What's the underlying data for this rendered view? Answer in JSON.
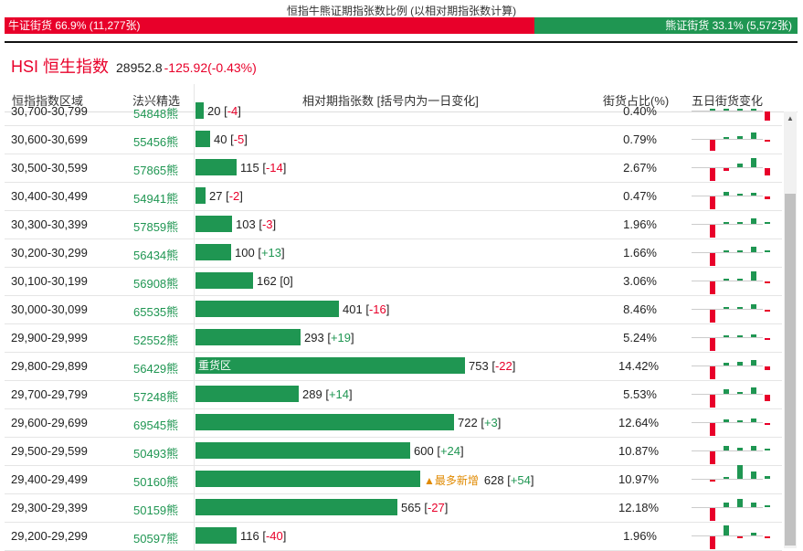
{
  "title": "恒指牛熊证期指张数比例 (以相对期指张数计算)",
  "ratio": {
    "bull_label": "牛证街货 66.9% (11,277张)",
    "bear_label": "熊证街货 33.1% (5,572张)",
    "bull_pct": 66.9,
    "bear_pct": 33.1,
    "colors": {
      "bull": "#e8002a",
      "bear": "#1f9652"
    }
  },
  "index": {
    "name": "HSI 恒生指数",
    "price": "28952.8",
    "change": "-125.92(-0.43%)"
  },
  "columns": {
    "range": "恒指指数区域",
    "bear": "法兴精选",
    "count": "相对期指张数 [括号内为一日变化]",
    "pct": "街货占比(%)",
    "five_day": "五日街货变化"
  },
  "rows": [
    {
      "range": "30,700-30,799",
      "bear": "54848熊",
      "count": 20,
      "change": "-4",
      "pct": "0.40%",
      "bar_label": "",
      "note": ""
    },
    {
      "range": "30,600-30,699",
      "bear": "55456熊",
      "count": 40,
      "change": "-5",
      "pct": "0.79%",
      "bar_label": "",
      "note": ""
    },
    {
      "range": "30,500-30,599",
      "bear": "57865熊",
      "count": 115,
      "change": "-14",
      "pct": "2.67%",
      "bar_label": "",
      "note": ""
    },
    {
      "range": "30,400-30,499",
      "bear": "54941熊",
      "count": 27,
      "change": "-2",
      "pct": "0.47%",
      "bar_label": "",
      "note": ""
    },
    {
      "range": "30,300-30,399",
      "bear": "57859熊",
      "count": 103,
      "change": "-3",
      "pct": "1.96%",
      "bar_label": "",
      "note": ""
    },
    {
      "range": "30,200-30,299",
      "bear": "56434熊",
      "count": 100,
      "change": "+13",
      "pct": "1.66%",
      "bar_label": "",
      "note": ""
    },
    {
      "range": "30,100-30,199",
      "bear": "56908熊",
      "count": 162,
      "change": "0",
      "pct": "3.06%",
      "bar_label": "",
      "note": ""
    },
    {
      "range": "30,000-30,099",
      "bear": "65535熊",
      "count": 401,
      "change": "-16",
      "pct": "8.46%",
      "bar_label": "",
      "note": ""
    },
    {
      "range": "29,900-29,999",
      "bear": "52552熊",
      "count": 293,
      "change": "+19",
      "pct": "5.24%",
      "bar_label": "",
      "note": ""
    },
    {
      "range": "29,800-29,899",
      "bear": "56429熊",
      "count": 753,
      "change": "-22",
      "pct": "14.42%",
      "bar_label": "重货区",
      "note": ""
    },
    {
      "range": "29,700-29,799",
      "bear": "57248熊",
      "count": 289,
      "change": "+14",
      "pct": "5.53%",
      "bar_label": "",
      "note": ""
    },
    {
      "range": "29,600-29,699",
      "bear": "69545熊",
      "count": 722,
      "change": "+3",
      "pct": "12.64%",
      "bar_label": "",
      "note": ""
    },
    {
      "range": "29,500-29,599",
      "bear": "50493熊",
      "count": 600,
      "change": "+24",
      "pct": "10.87%",
      "bar_label": "",
      "note": ""
    },
    {
      "range": "29,400-29,499",
      "bear": "50160熊",
      "count": 628,
      "change": "+54",
      "pct": "10.97%",
      "bar_label": "",
      "note": "▲最多新增"
    },
    {
      "range": "29,300-29,399",
      "bear": "50159熊",
      "count": 565,
      "change": "-27",
      "pct": "12.18%",
      "bar_label": "",
      "note": ""
    },
    {
      "range": "29,200-29,299",
      "bear": "50597熊",
      "count": 116,
      "change": "-40",
      "pct": "1.96%",
      "bar_label": "",
      "note": ""
    }
  ],
  "five_day": [
    [
      0,
      0,
      0,
      0,
      -10
    ],
    [
      -12,
      1,
      3,
      7,
      -1
    ],
    [
      -14,
      -3,
      4,
      10,
      -8
    ],
    [
      -14,
      4,
      2,
      3,
      -3
    ],
    [
      -14,
      0,
      1,
      6,
      0
    ],
    [
      -14,
      0,
      1,
      6,
      2
    ],
    [
      -14,
      2,
      1,
      10,
      -1
    ],
    [
      -14,
      0,
      1,
      5,
      -1
    ],
    [
      -14,
      0,
      0,
      3,
      -1
    ],
    [
      -14,
      3,
      4,
      6,
      -4
    ],
    [
      -14,
      5,
      0,
      7,
      -7
    ],
    [
      -14,
      3,
      2,
      4,
      -1
    ],
    [
      -14,
      5,
      3,
      5,
      1
    ],
    [
      -1,
      0,
      15,
      8,
      3
    ],
    [
      -14,
      5,
      9,
      5,
      2
    ],
    [
      -14,
      11,
      -1,
      3,
      -2
    ]
  ]
}
